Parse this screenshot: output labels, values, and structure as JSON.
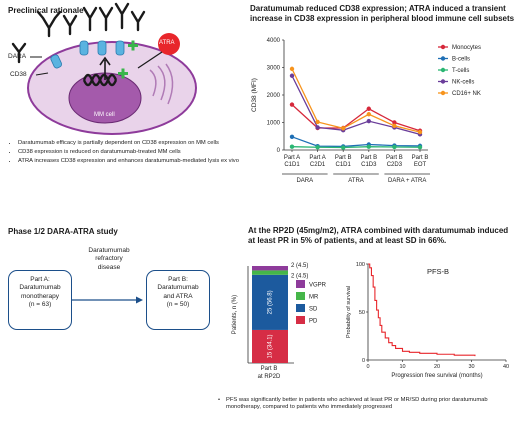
{
  "preclinical": {
    "title": "Preclinical rationale",
    "labels": {
      "dara": "DARA",
      "cd38": "CD38",
      "atra": "ATRA",
      "mm_cell": "MM cell"
    },
    "bullets": [
      "Daratumumab efficacy is partially dependent on CD38 expression on MM cells",
      "CD38 expression is reduced on daratumumab-treated MM cells",
      "ATRA increases CD38 expression and enhances daratumumab-mediated lysis ex vivo"
    ]
  },
  "cd38_chart": {
    "title": "Daratumumab reduced CD38 expression; ATRA induced a transient increase in CD38 expression in peripheral blood immune cell subsets",
    "group_labels": [
      "DARA",
      "ATRA",
      "DARA + ATRA"
    ]
  },
  "phase": {
    "title": "Phase 1/2 DARA-ATRA study",
    "part_a": [
      "Part A:",
      "Daratumumab",
      "monotherapy",
      "(n = 63)"
    ],
    "arrow_text": [
      "Daratumumab",
      "refractory",
      "disease"
    ],
    "part_b": [
      "Part B:",
      "Daratumumab",
      "and ATRA",
      "(n = 50)"
    ]
  },
  "rp2d": {
    "title": "At the RP2D (45mg/m2), ATRA combined with daratumumab induced at least PR in 5% of patients, and at least SD in 66%.",
    "footnote": "PFS was significantly better in patients who achieved at least PR or MR/SD during prior daratumumab monotherapy, compared to patients who immediately progressed",
    "bar_xlabel": [
      "Part B",
      "at RP2D"
    ]
  },
  "pfs": {
    "title": "PFS-B"
  },
  "chart_data": [
    {
      "type": "line",
      "ylabel": "CD38 (MFI)",
      "categories": [
        [
          "Part A",
          "C1D1"
        ],
        [
          "Part A",
          "C2D1"
        ],
        [
          "Part B",
          "C1D1"
        ],
        [
          "Part B",
          "C1D3"
        ],
        [
          "Part B",
          "C2D3"
        ],
        [
          "Part B",
          "EOT"
        ]
      ],
      "ylim": [
        0,
        4000
      ],
      "yticks": [
        0,
        1000,
        2000,
        3000,
        4000
      ],
      "series": [
        {
          "name": "Monocytes",
          "color": "#d6283b",
          "values": [
            1650,
            800,
            800,
            1500,
            1000,
            700
          ]
        },
        {
          "name": "B-cells",
          "color": "#1e6fb5",
          "values": [
            480,
            140,
            130,
            200,
            160,
            150
          ]
        },
        {
          "name": "T-cells",
          "color": "#2bb673",
          "values": [
            120,
            100,
            90,
            120,
            110,
            100
          ]
        },
        {
          "name": "NK-cells",
          "color": "#6a3d9a",
          "values": [
            2700,
            820,
            720,
            1050,
            820,
            570
          ]
        },
        {
          "name": "CD16+ NK",
          "color": "#f7941d",
          "values": [
            2950,
            1020,
            790,
            1300,
            880,
            650
          ]
        }
      ]
    },
    {
      "type": "bar",
      "ylabel": "Patients, n (%)",
      "ylim": [
        0,
        44
      ],
      "segments": [
        {
          "name": "PD",
          "count": 15,
          "pct": "34.1",
          "color": "#d62d45",
          "label": "15 (34.1)"
        },
        {
          "name": "SD",
          "count": 25,
          "pct": "56.8",
          "color": "#1c5a9e",
          "label": "25 (56.8)"
        },
        {
          "name": "MR",
          "count": 2,
          "pct": "4.5",
          "color": "#45b649",
          "label": "2 (4.5)"
        },
        {
          "name": "VGPR",
          "count": 2,
          "pct": "4.5",
          "color": "#8e3b9b",
          "label": "2 (4.5)"
        }
      ]
    },
    {
      "type": "line",
      "title": "PFS-B",
      "xlabel": "Progression free survival (months)",
      "ylabel": "Probability of survival",
      "xlim": [
        0,
        40
      ],
      "xticks": [
        0,
        10,
        20,
        30,
        40
      ],
      "ylim": [
        0,
        100
      ],
      "yticks": [
        0,
        50,
        100
      ],
      "color": "#e8262b",
      "points": [
        [
          0,
          100
        ],
        [
          0.5,
          96
        ],
        [
          1,
          88
        ],
        [
          1.5,
          76
        ],
        [
          2,
          62
        ],
        [
          2.5,
          52
        ],
        [
          3,
          44
        ],
        [
          3.5,
          36
        ],
        [
          4,
          29
        ],
        [
          5,
          23
        ],
        [
          6,
          18
        ],
        [
          7,
          15
        ],
        [
          8,
          12
        ],
        [
          10,
          9
        ],
        [
          12,
          8
        ],
        [
          15,
          7
        ],
        [
          20,
          6
        ],
        [
          25,
          5
        ],
        [
          31,
          4
        ]
      ]
    }
  ]
}
